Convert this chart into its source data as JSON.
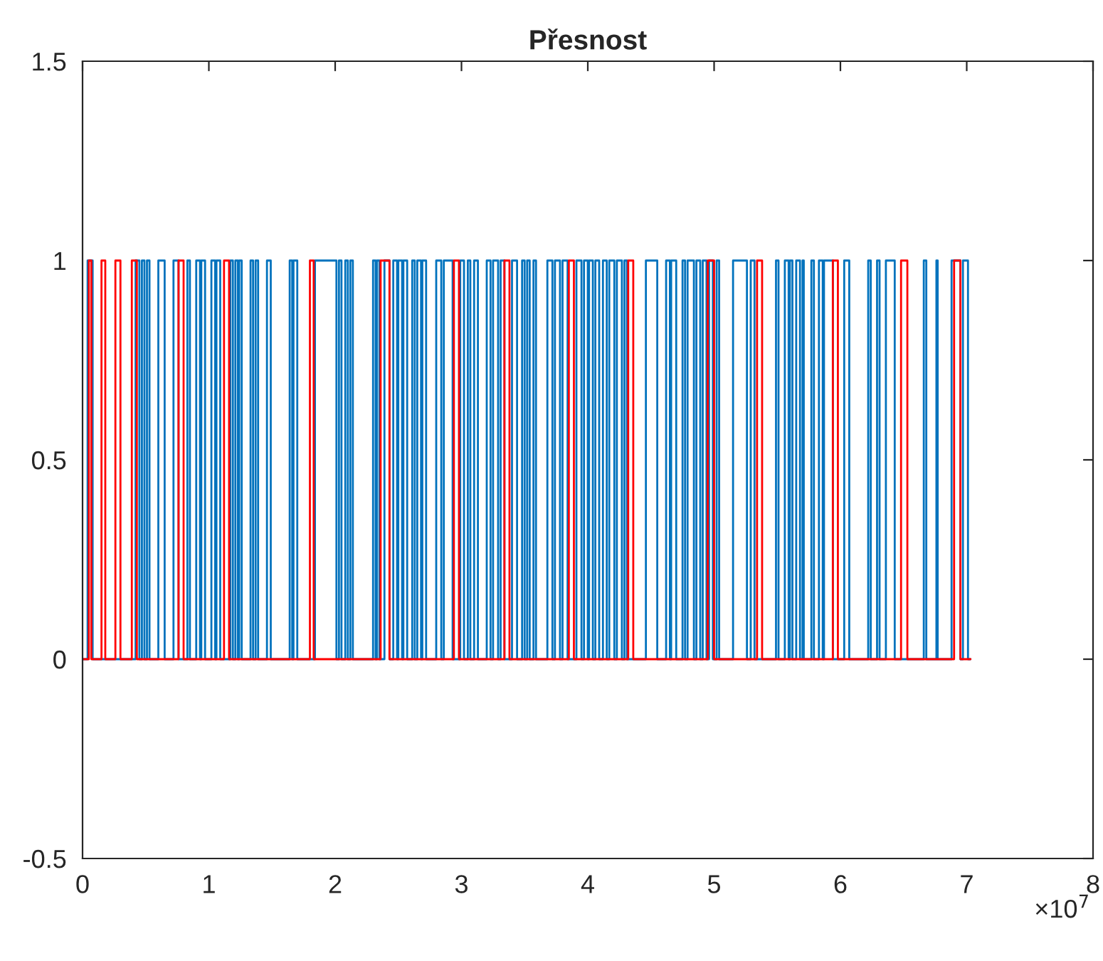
{
  "chart_data": {
    "type": "step",
    "title": "Přesnost",
    "xlim": [
      0,
      8
    ],
    "xticks": [
      0,
      1,
      2,
      3,
      4,
      5,
      6,
      7,
      8
    ],
    "ylim": [
      -0.5,
      1.5
    ],
    "yticks": [
      -0.5,
      0,
      0.5,
      1,
      1.5
    ],
    "annotations": [
      "×10$^{7}$"
    ],
    "grid": false,
    "legend": false,
    "series": [
      {
        "color": "#0072bd",
        "x": [
          0,
          0.04,
          0.08,
          0.42,
          0.45,
          0.47,
          0.49,
          0.51,
          0.53,
          0.6,
          0.65,
          0.72,
          0.76,
          0.83,
          0.85,
          0.9,
          0.93,
          0.94,
          0.97,
          1.02,
          1.05,
          1.06,
          1.09,
          1.17,
          1.19,
          1.21,
          1.23,
          1.24,
          1.26,
          1.33,
          1.35,
          1.37,
          1.39,
          1.46,
          1.49,
          1.64,
          1.66,
          1.67,
          1.7,
          1.84,
          2.01,
          2.03,
          2.05,
          2.08,
          2.1,
          2.12,
          2.14,
          2.3,
          2.32,
          2.33,
          2.35,
          2.39,
          2.43,
          2.46,
          2.49,
          2.5,
          2.53,
          2.54,
          2.57,
          2.61,
          2.63,
          2.65,
          2.68,
          2.69,
          2.72,
          2.8,
          2.84,
          2.86,
          2.93,
          2.99,
          3.02,
          3.05,
          3.07,
          3.1,
          3.13,
          3.2,
          3.23,
          3.25,
          3.29,
          3.31,
          3.34,
          3.4,
          3.44,
          3.48,
          3.5,
          3.52,
          3.54,
          3.57,
          3.59,
          3.68,
          3.72,
          3.74,
          3.78,
          3.8,
          3.84,
          3.91,
          3.95,
          3.97,
          4.0,
          4.01,
          4.04,
          4.06,
          4.09,
          4.12,
          4.15,
          4.17,
          4.21,
          4.23,
          4.27,
          4.29,
          4.31,
          4.46,
          4.55,
          4.62,
          4.65,
          4.66,
          4.7,
          4.75,
          4.77,
          4.79,
          4.84,
          4.86,
          4.89,
          4.91,
          4.94,
          4.96,
          4.99,
          5.02,
          5.04,
          5.15,
          5.26,
          5.29,
          5.32,
          5.49,
          5.51,
          5.56,
          5.59,
          5.6,
          5.62,
          5.65,
          5.68,
          5.7,
          5.71,
          5.77,
          5.79,
          5.83,
          5.86,
          5.87,
          5.94,
          6.03,
          6.07,
          6.22,
          6.24,
          6.29,
          6.31,
          6.36,
          6.43,
          6.66,
          6.68,
          6.76,
          6.77,
          6.88,
          6.95,
          6.97,
          7.01,
          7.03
        ],
        "values": [
          0,
          1,
          0,
          1,
          0,
          1,
          0,
          1,
          0,
          1,
          0,
          1,
          0,
          1,
          0,
          1,
          0,
          1,
          0,
          1,
          0,
          1,
          0,
          1,
          0,
          1,
          0,
          1,
          0,
          1,
          0,
          1,
          0,
          1,
          0,
          1,
          0,
          1,
          0,
          1,
          0,
          1,
          0,
          1,
          0,
          1,
          0,
          1,
          0,
          1,
          0,
          1,
          0,
          1,
          0,
          1,
          0,
          1,
          0,
          1,
          0,
          1,
          0,
          1,
          0,
          1,
          0,
          1,
          0,
          1,
          0,
          1,
          0,
          1,
          0,
          1,
          0,
          1,
          0,
          1,
          0,
          1,
          0,
          1,
          0,
          1,
          0,
          1,
          0,
          1,
          0,
          1,
          0,
          1,
          0,
          1,
          0,
          1,
          0,
          1,
          0,
          1,
          0,
          1,
          0,
          1,
          0,
          1,
          0,
          1,
          0,
          1,
          0,
          1,
          0,
          1,
          0,
          1,
          0,
          1,
          0,
          1,
          0,
          1,
          0,
          1,
          0,
          1,
          0,
          1,
          0,
          1,
          0,
          1,
          0,
          1,
          0,
          1,
          0,
          1,
          0,
          1,
          0,
          1,
          0,
          1,
          0,
          1,
          0,
          1,
          0,
          1,
          0,
          1,
          0,
          1,
          0,
          1,
          0,
          1,
          0,
          1,
          0,
          1,
          0,
          0
        ]
      },
      {
        "color": "#ff0000",
        "x": [
          0,
          0.05,
          0.07,
          0.15,
          0.18,
          0.26,
          0.3,
          0.39,
          0.43,
          0.76,
          0.8,
          1.12,
          1.16,
          1.8,
          1.83,
          2.36,
          2.43,
          2.94,
          2.98,
          3.34,
          3.38,
          3.85,
          3.89,
          4.32,
          4.36,
          4.95,
          5.0,
          5.34,
          5.38,
          5.94,
          5.98,
          6.48,
          6.53,
          6.9,
          6.95,
          7.03
        ],
        "values": [
          0,
          1,
          0,
          1,
          0,
          1,
          0,
          1,
          0,
          1,
          0,
          1,
          0,
          1,
          0,
          1,
          0,
          1,
          0,
          1,
          0,
          1,
          0,
          1,
          0,
          1,
          0,
          1,
          0,
          1,
          0,
          1,
          0,
          1,
          0,
          0
        ]
      }
    ]
  }
}
